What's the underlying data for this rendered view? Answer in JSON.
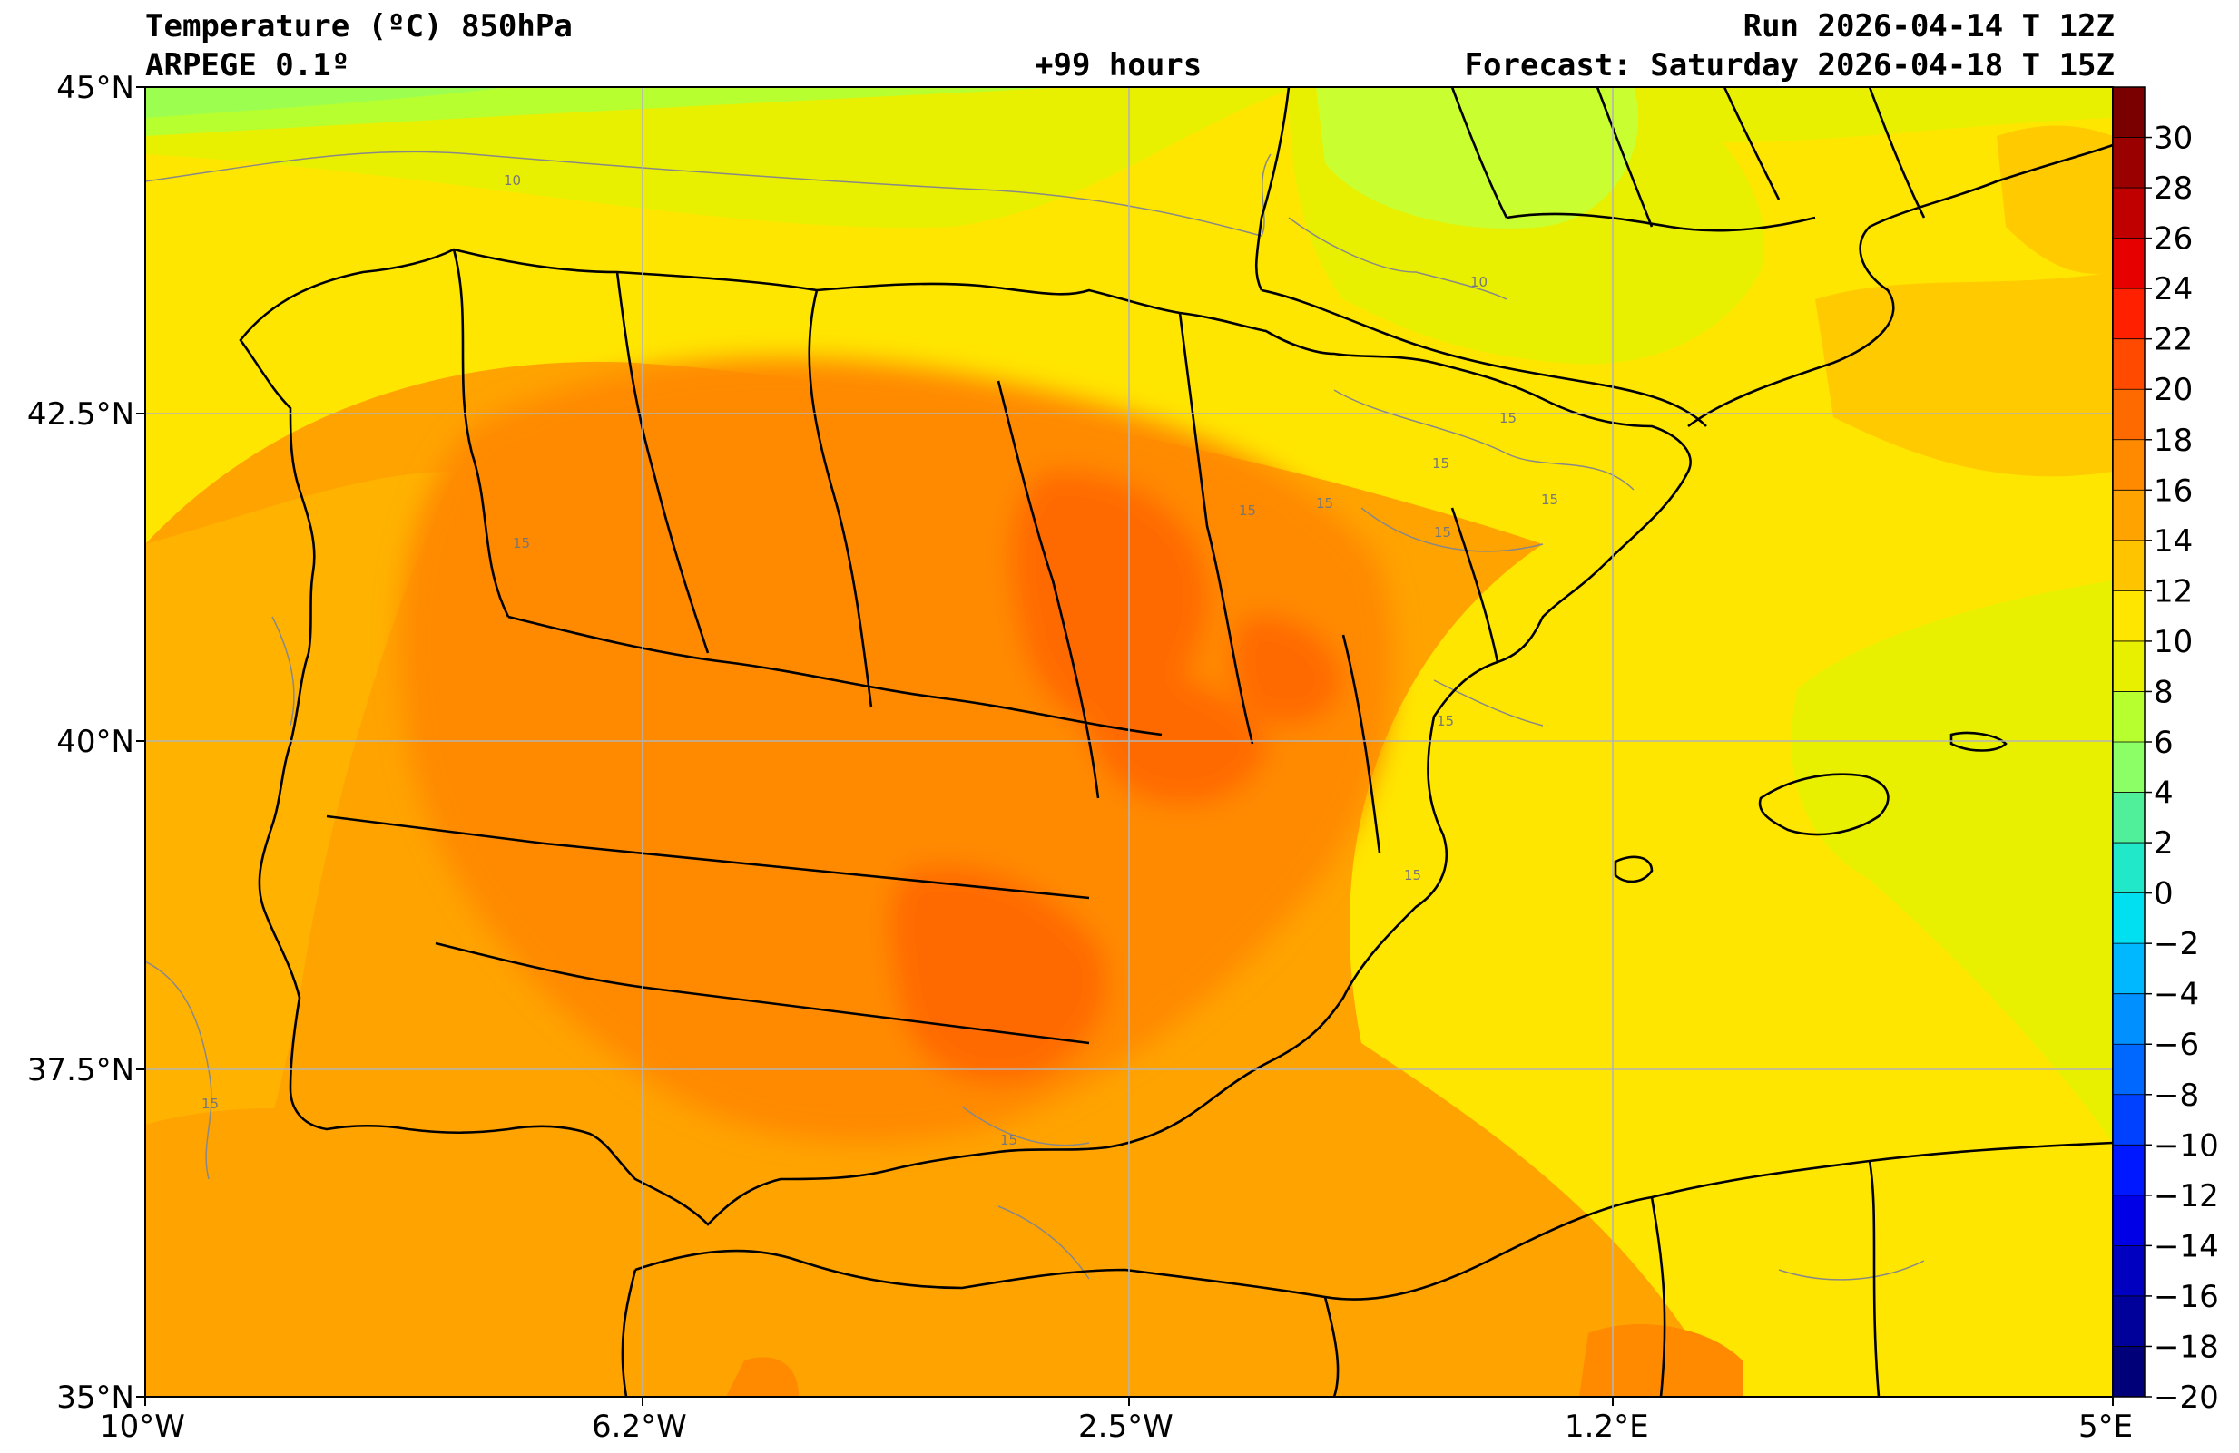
{
  "header": {
    "title": "Temperature (ºC) 850hPa",
    "model": "ARPEGE 0.1º",
    "lead_time": "+99 hours",
    "run": "Run 2026-04-14 T 12Z",
    "forecast": "Forecast: Saturday 2026-04-18 T 15Z"
  },
  "axes": {
    "lat_labels": [
      "45°N",
      "42.5°N",
      "40°N",
      "37.5°N",
      "35°N"
    ],
    "lon_labels": [
      "10°W",
      "6.2°W",
      "2.5°W",
      "1.2°E",
      "5°E"
    ]
  },
  "colorbar": {
    "labels": [
      "30",
      "28",
      "26",
      "24",
      "22",
      "20",
      "18",
      "16",
      "14",
      "12",
      "10",
      "8",
      "6",
      "4",
      "2",
      "0",
      "−2",
      "−4",
      "−6",
      "−8",
      "−10",
      "−12",
      "−14",
      "−16",
      "−18",
      "−20"
    ],
    "colors_top_to_bottom": [
      "#7a0000",
      "#9a0000",
      "#c00000",
      "#e60000",
      "#ff2000",
      "#ff4a00",
      "#ff6a00",
      "#ff8a00",
      "#ffa300",
      "#ffc400",
      "#ffe600",
      "#e8f000",
      "#b8ff30",
      "#8cff66",
      "#50f09a",
      "#20e8c8",
      "#00e0f0",
      "#00b8ff",
      "#0090ff",
      "#0068ff",
      "#0040ff",
      "#0018ff",
      "#0000e6",
      "#0000c0",
      "#00009a",
      "#000078"
    ]
  },
  "contour_labels": [
    "10",
    "10",
    "15",
    "15",
    "15",
    "15",
    "15",
    "15",
    "15",
    "15",
    "15",
    "15",
    "15"
  ]
}
